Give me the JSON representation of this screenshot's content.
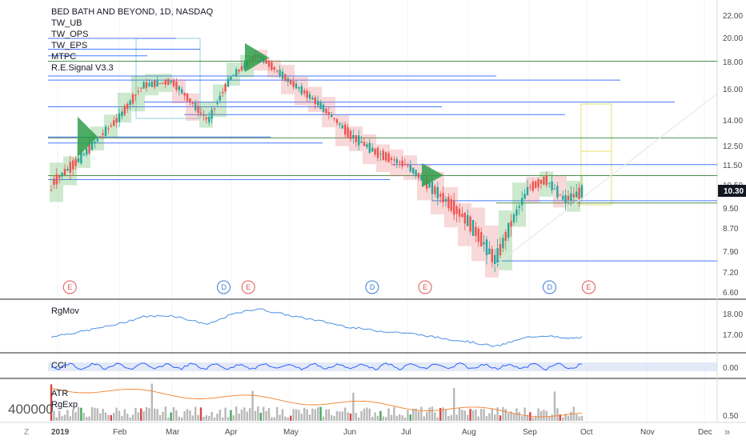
{
  "chart_data": {
    "type": "candlestick",
    "title": "BED BATH AND BEYOND, 1D, NASDAQ",
    "indicators": [
      "TW_UB",
      "TW_OPS",
      "TW_EPS",
      "MTPC",
      "R.E.Signal V3.3"
    ],
    "last_price": "10.30",
    "colors": {
      "up": "#26a69a",
      "down": "#ef5350",
      "hline": "#2962ff",
      "sline": "#2e7d32",
      "projection": "#e6e070"
    },
    "price_axis_ticks": [
      "22.00",
      "20.00",
      "18.00",
      "16.00",
      "14.00",
      "12.50",
      "11.50",
      "10.50",
      "9.50",
      "8.70",
      "7.90",
      "7.20",
      "6.60"
    ],
    "x_axis_ticks": [
      "2019",
      "Feb",
      "Mar",
      "Apr",
      "May",
      "Jun",
      "Jul",
      "Aug",
      "Sep",
      "Oct",
      "Nov",
      "Dec"
    ],
    "price_path": [
      [
        "Jan 02",
        10.6
      ],
      [
        "Jan 15",
        11.9
      ],
      [
        "Feb 01",
        14.2
      ],
      [
        "Feb 15",
        16.3
      ],
      [
        "Mar 01",
        16.6
      ],
      [
        "Mar 20",
        14.0
      ],
      [
        "Apr 01",
        16.9
      ],
      [
        "Apr 15",
        18.6
      ],
      [
        "May 01",
        16.6
      ],
      [
        "May 15",
        15.2
      ],
      [
        "Jun 01",
        13.2
      ],
      [
        "Jun 15",
        12.2
      ],
      [
        "Jul 01",
        11.5
      ],
      [
        "Jul 15",
        10.3
      ],
      [
        "Aug 01",
        9.0
      ],
      [
        "Aug 15",
        7.6
      ],
      [
        "Sep 01",
        10.4
      ],
      [
        "Sep 10",
        10.8
      ],
      [
        "Sep 20",
        9.9
      ],
      [
        "Oct 01",
        10.3
      ]
    ],
    "events": [
      {
        "label": "E",
        "date": "Jan 10",
        "type": "earnings"
      },
      {
        "label": "D",
        "date": "Mar 28",
        "type": "dividend"
      },
      {
        "label": "E",
        "date": "Apr 10",
        "type": "earnings"
      },
      {
        "label": "D",
        "date": "Jun 13",
        "type": "dividend"
      },
      {
        "label": "E",
        "date": "Jul 10",
        "type": "earnings"
      },
      {
        "label": "D",
        "date": "Sep 12",
        "type": "dividend"
      },
      {
        "label": "E",
        "date": "Oct 02",
        "type": "earnings"
      }
    ],
    "panes": [
      {
        "name": "RgMov",
        "ticks": [
          "18.00",
          "17.00"
        ]
      },
      {
        "name": "CCI",
        "ticks": [
          "0.00"
        ]
      },
      {
        "name": "ATR",
        "ticks": [
          "0.50"
        ]
      },
      {
        "name": "RgExp",
        "ticks": []
      }
    ],
    "volume_label": "400000"
  }
}
